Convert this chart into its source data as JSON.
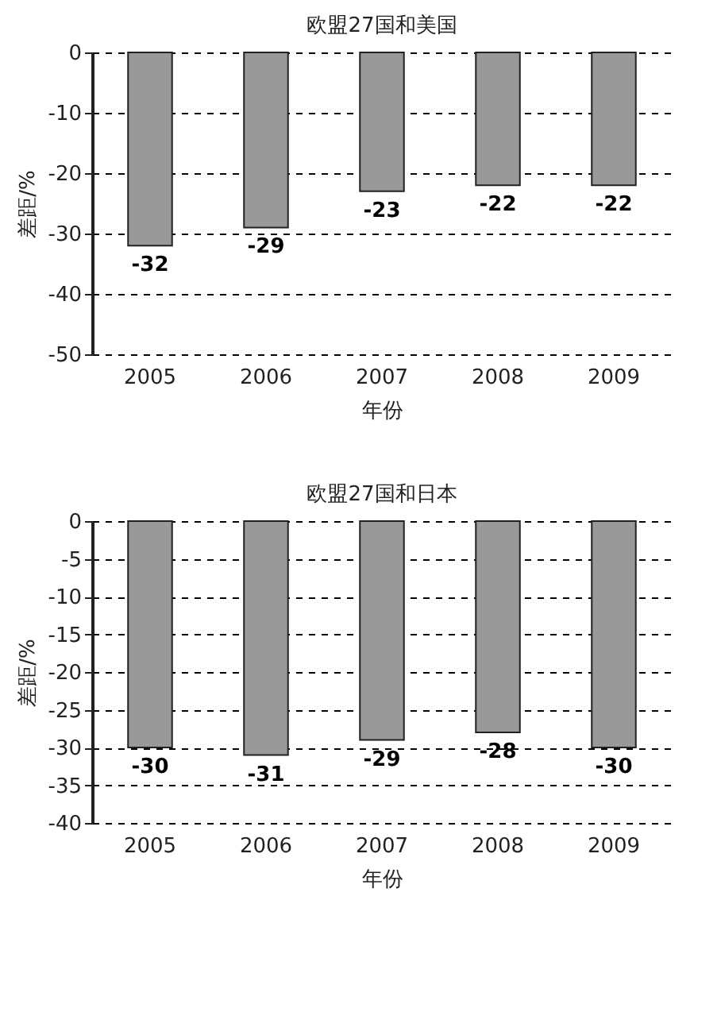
{
  "chart_data": [
    {
      "type": "bar",
      "title": "欧盟27国和美国",
      "xlabel": "年份",
      "ylabel": "差距/%",
      "categories": [
        "2005",
        "2006",
        "2007",
        "2008",
        "2009"
      ],
      "values": [
        -32,
        -29,
        -23,
        -22,
        -22
      ],
      "color": "#999999",
      "ylim": [
        -50,
        0
      ],
      "yticks": [
        -50,
        -40,
        -30,
        -20,
        -10,
        0
      ],
      "grid": "y",
      "data_labels": true
    },
    {
      "type": "bar",
      "title": "欧盟27国和日本",
      "xlabel": "年份",
      "ylabel": "差距/%",
      "categories": [
        "2005",
        "2006",
        "2007",
        "2008",
        "2009"
      ],
      "values": [
        -30,
        -31,
        -29,
        -28,
        -30
      ],
      "color": "#999999",
      "ylim": [
        -40,
        0
      ],
      "yticks": [
        -40,
        -35,
        -30,
        -25,
        -20,
        -15,
        -10,
        -5,
        0
      ],
      "grid": "y",
      "data_labels": true
    }
  ]
}
